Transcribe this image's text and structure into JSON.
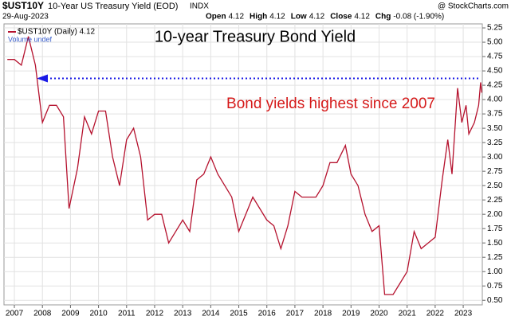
{
  "chart_data": {
    "type": "line",
    "header": {
      "symbol": "$UST10Y",
      "name": "10-Year US Treasury Yield (EOD)",
      "exchange": "INDX",
      "copyright": "@ StockCharts.com",
      "date": "29-Aug-2023",
      "quote": [
        {
          "label": "Open",
          "value": "4.12"
        },
        {
          "label": "High",
          "value": "4.12"
        },
        {
          "label": "Low",
          "value": "4.12"
        },
        {
          "label": "Close",
          "value": "4.12"
        },
        {
          "label": "Chg",
          "value": "-0.08 (-1.90%)"
        }
      ]
    },
    "title": "10-year Treasury Bond Yield",
    "annotation": "Bond yields highest since 2007",
    "legend_label": "$UST10Y (Daily) 4.12",
    "volume_label": "Volume undef",
    "reference_line": {
      "value": 4.37,
      "color": "#1a1ae6"
    },
    "x": [
      2006.75,
      2007.0,
      2007.25,
      2007.5,
      2007.75,
      2008.0,
      2008.25,
      2008.5,
      2008.75,
      2008.95,
      2009.25,
      2009.5,
      2009.75,
      2010.0,
      2010.25,
      2010.5,
      2010.75,
      2011.0,
      2011.25,
      2011.5,
      2011.75,
      2012.0,
      2012.25,
      2012.5,
      2012.75,
      2013.0,
      2013.25,
      2013.5,
      2013.75,
      2014.0,
      2014.25,
      2014.5,
      2014.75,
      2015.0,
      2015.25,
      2015.5,
      2015.75,
      2016.0,
      2016.25,
      2016.5,
      2016.75,
      2017.0,
      2017.25,
      2017.5,
      2017.75,
      2018.0,
      2018.25,
      2018.5,
      2018.8,
      2019.0,
      2019.25,
      2019.5,
      2019.75,
      2020.0,
      2020.2,
      2020.5,
      2020.75,
      2021.0,
      2021.25,
      2021.5,
      2021.75,
      2022.0,
      2022.25,
      2022.45,
      2022.6,
      2022.8,
      2022.95,
      2023.1,
      2023.2,
      2023.4,
      2023.55,
      2023.62,
      2023.66
    ],
    "series": [
      {
        "name": "$UST10Y",
        "color": "#b5122e",
        "values": [
          4.7,
          4.7,
          4.6,
          5.1,
          4.6,
          3.6,
          3.9,
          3.9,
          3.7,
          2.1,
          2.8,
          3.7,
          3.4,
          3.8,
          3.8,
          3.0,
          2.5,
          3.3,
          3.5,
          3.0,
          1.9,
          2.0,
          2.0,
          1.5,
          1.7,
          1.9,
          1.7,
          2.6,
          2.7,
          3.0,
          2.7,
          2.5,
          2.3,
          1.7,
          2.0,
          2.3,
          2.1,
          1.9,
          1.8,
          1.4,
          1.8,
          2.4,
          2.3,
          2.3,
          2.3,
          2.5,
          2.9,
          2.9,
          3.2,
          2.7,
          2.5,
          2.0,
          1.7,
          1.8,
          0.6,
          0.6,
          0.8,
          1.0,
          1.7,
          1.4,
          1.5,
          1.6,
          2.6,
          3.3,
          2.7,
          4.2,
          3.6,
          3.9,
          3.4,
          3.6,
          3.9,
          4.3,
          4.12
        ]
      }
    ],
    "xlim": [
      2006.63,
      2023.68
    ],
    "xticks": [
      2007,
      2008,
      2009,
      2010,
      2011,
      2012,
      2013,
      2014,
      2015,
      2016,
      2017,
      2018,
      2019,
      2020,
      2021,
      2022,
      2023
    ],
    "ylim": [
      0.42,
      5.32
    ],
    "yticks": [
      {
        "value": 0.5,
        "label": "0.50"
      },
      {
        "value": 0.75,
        "label": "0.75"
      },
      {
        "value": 1.0,
        "label": "1.00"
      },
      {
        "value": 1.25,
        "label": "1.25"
      },
      {
        "value": 1.5,
        "label": "1.50"
      },
      {
        "value": 1.75,
        "label": "1.75"
      },
      {
        "value": 2.0,
        "label": "2.00"
      },
      {
        "value": 2.25,
        "label": "2.25"
      },
      {
        "value": 2.5,
        "label": "2.50"
      },
      {
        "value": 2.75,
        "label": "2.75"
      },
      {
        "value": 3.0,
        "label": "3.00"
      },
      {
        "value": 3.25,
        "label": "3.25"
      },
      {
        "value": 3.5,
        "label": "3.50"
      },
      {
        "value": 3.75,
        "label": "3.75"
      },
      {
        "value": 4.0,
        "label": "4.00"
      },
      {
        "value": 4.25,
        "label": "4.25"
      },
      {
        "value": 4.5,
        "label": "4.50"
      },
      {
        "value": 4.75,
        "label": "4.75"
      },
      {
        "value": 5.0,
        "label": "5.00"
      },
      {
        "value": 5.25,
        "label": "5.25"
      }
    ],
    "grid": true
  }
}
